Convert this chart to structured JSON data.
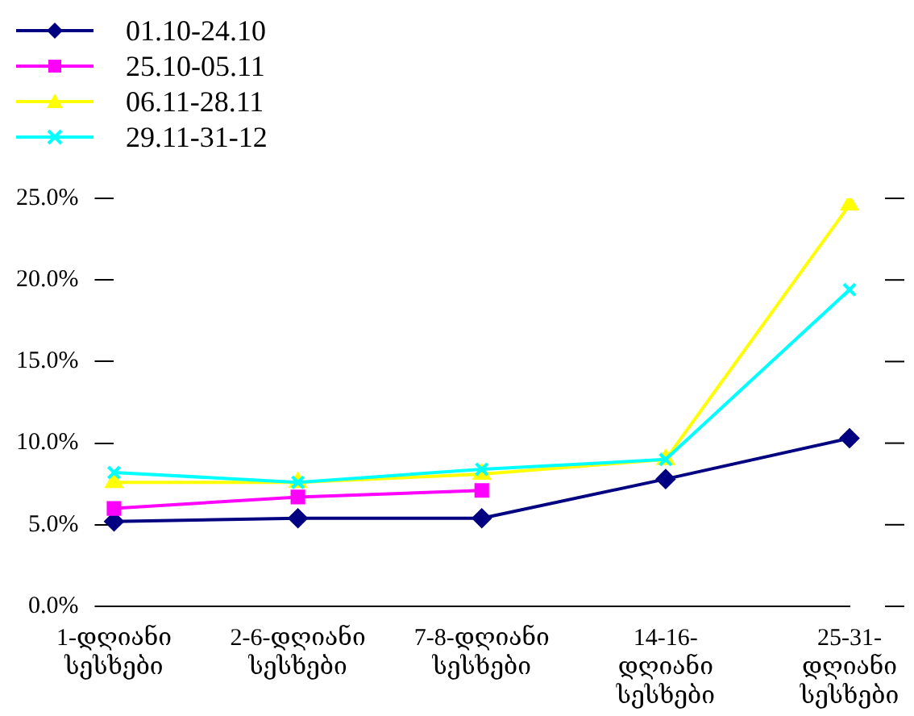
{
  "chart_data": {
    "type": "line",
    "categories": [
      "1-დღიანი სესხები",
      "2-6-დღიანი სესხები",
      "7-8-დღიანი სესხები",
      "14-16-დღიანი სესხები",
      "25-31-დღიანი სესხები"
    ],
    "series": [
      {
        "name": "01.10-24.10",
        "color": "#000080",
        "marker": "diamond",
        "values": [
          5.2,
          5.4,
          5.4,
          7.8,
          10.3
        ]
      },
      {
        "name": "25.10-05.11",
        "color": "#ff00ff",
        "marker": "square",
        "values": [
          6.0,
          6.7,
          7.1,
          null,
          null
        ]
      },
      {
        "name": "06.11-28.11",
        "color": "#ffff00",
        "marker": "triangle",
        "values": [
          7.6,
          7.6,
          8.1,
          9.0,
          24.6
        ]
      },
      {
        "name": "29.11-31-12",
        "color": "#00ffff",
        "marker": "cross",
        "values": [
          8.2,
          7.6,
          8.4,
          9.0,
          19.4
        ]
      }
    ],
    "ylim": [
      0,
      25
    ],
    "yticks": [
      {
        "value": 0,
        "label": "0.0%"
      },
      {
        "value": 5,
        "label": "5.0%"
      },
      {
        "value": 10,
        "label": "10.0%"
      },
      {
        "value": 15,
        "label": "15.0%"
      },
      {
        "value": 20,
        "label": "20.0%"
      },
      {
        "value": 25,
        "label": "25.0%"
      }
    ],
    "grid": false,
    "legend": "top left"
  }
}
